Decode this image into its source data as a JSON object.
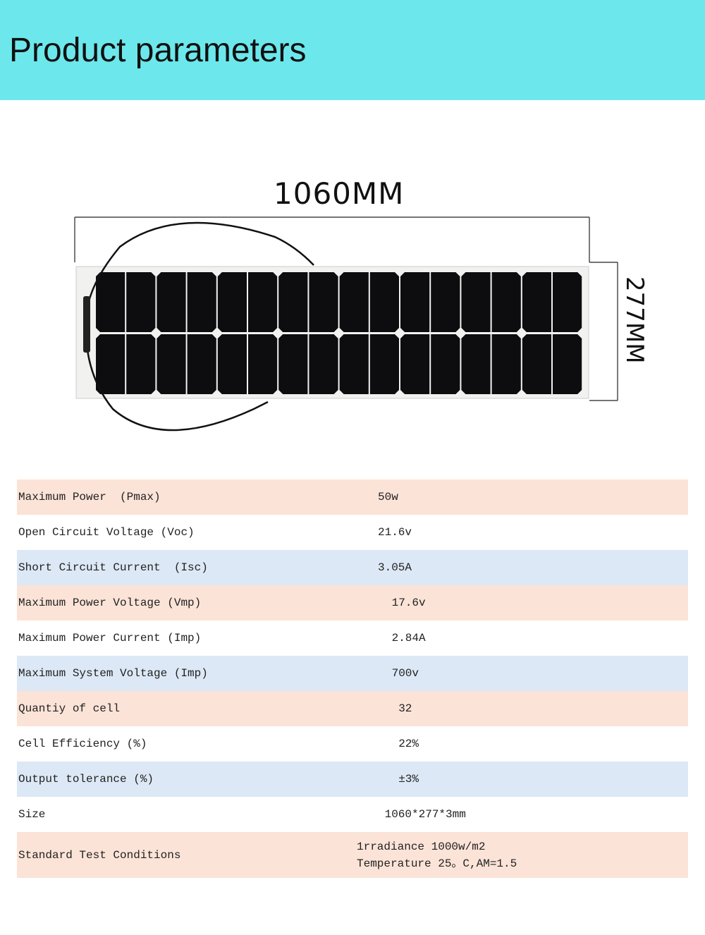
{
  "header": {
    "title": "Product parameters",
    "color": "#6ce8ec"
  },
  "image": {
    "width_label": "1060MM",
    "height_label": "277MM",
    "cell_rows": 2,
    "cell_cols": 16
  },
  "table": {
    "rows": [
      {
        "label": "Maximum Power  (Pmax)",
        "value": "50w",
        "bg": "peach"
      },
      {
        "label": "Open Circuit Voltage (Voc)",
        "value": "21.6v",
        "bg": "white"
      },
      {
        "label": "Short Circuit Current  (Isc)",
        "value": "3.05A",
        "bg": "blue"
      },
      {
        "label": "Maximum Power Voltage (Vmp)",
        "value": " 17.6v",
        "bg": "peach"
      },
      {
        "label": "Maximum Power Current (Imp)",
        "value": " 2.84A",
        "bg": "white"
      },
      {
        "label": "Maximum System Voltage (Imp)",
        "value": " 700v",
        "bg": "blue"
      },
      {
        "label": "Quantiy of cell",
        "value": "  32",
        "bg": "peach"
      },
      {
        "label": "Cell Efficiency (%)",
        "value": "  22%",
        "bg": "white"
      },
      {
        "label": "Output tolerance (%)",
        "value": "  ±3%",
        "bg": "blue"
      },
      {
        "label": "Size",
        "value": " 1060*277*3mm",
        "bg": "white"
      },
      {
        "label": "Standard Test Conditions",
        "value": "1rradiance 1000w/m2\nTemperature 25。C,AM=1.5",
        "bg": "peach"
      }
    ]
  }
}
